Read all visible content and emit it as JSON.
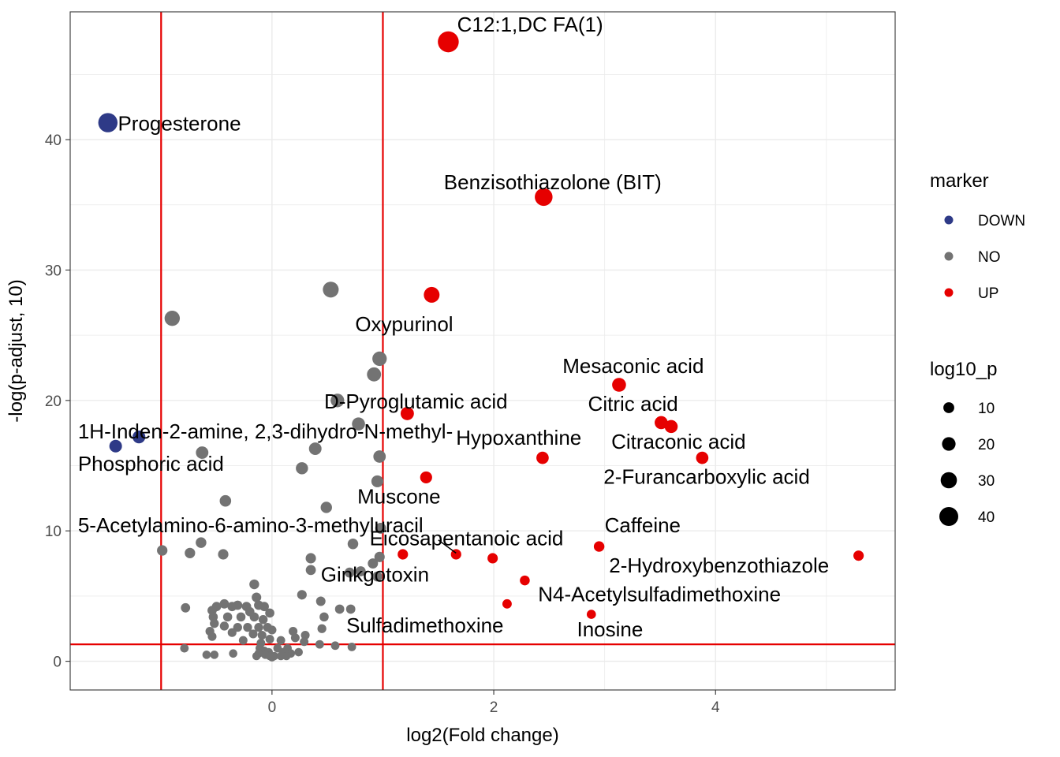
{
  "chart_data": {
    "type": "scatter",
    "xlabel": "log2(Fold change)",
    "ylabel": "-log(p-adjust, 10)",
    "xlim": [
      -1.82,
      5.62
    ],
    "ylim": [
      -2.2,
      49.8
    ],
    "x_ticks": [
      0,
      2,
      4
    ],
    "x_tick_labels": [
      "0",
      "2",
      "4"
    ],
    "y_ticks": [
      0,
      10,
      20,
      30,
      40
    ],
    "y_tick_labels": [
      "0",
      "10",
      "20",
      "30",
      "40"
    ],
    "grid": true,
    "thresholds": {
      "vlines": [
        -1,
        1
      ],
      "hline": 1.3
    },
    "colors": {
      "DOWN": "#2e3a87",
      "NO": "#737373",
      "UP": "#e60000",
      "threshold": "#e60000",
      "grid": "#ebebeb"
    },
    "legend_color": {
      "title": "marker",
      "entries": [
        "DOWN",
        "NO",
        "UP"
      ],
      "placement": "right"
    },
    "legend_size": {
      "title": "log10_p",
      "entries": [
        "10",
        "20",
        "30",
        "40"
      ],
      "values": [
        10,
        20,
        30,
        40
      ],
      "placement": "right"
    },
    "points": [
      {
        "x": 1.59,
        "y": 47.5,
        "size": 47.5,
        "marker": "UP"
      },
      {
        "x": -1.48,
        "y": 41.3,
        "size": 41.3,
        "marker": "DOWN"
      },
      {
        "x": 2.45,
        "y": 35.6,
        "size": 35.6,
        "marker": "UP"
      },
      {
        "x": 0.53,
        "y": 28.5,
        "size": 28.5,
        "marker": "NO"
      },
      {
        "x": 1.44,
        "y": 28.1,
        "size": 28.1,
        "marker": "UP"
      },
      {
        "x": -0.9,
        "y": 26.3,
        "size": 26.3,
        "marker": "NO"
      },
      {
        "x": 0.97,
        "y": 23.2,
        "size": 23.2,
        "marker": "NO"
      },
      {
        "x": 0.92,
        "y": 22.0,
        "size": 22.0,
        "marker": "NO"
      },
      {
        "x": 3.13,
        "y": 21.2,
        "size": 21.2,
        "marker": "UP"
      },
      {
        "x": 0.59,
        "y": 20.0,
        "size": 20.0,
        "marker": "NO"
      },
      {
        "x": 1.22,
        "y": 19.0,
        "size": 19.0,
        "marker": "UP"
      },
      {
        "x": 3.51,
        "y": 18.3,
        "size": 18.3,
        "marker": "UP"
      },
      {
        "x": 0.78,
        "y": 18.2,
        "size": 18.2,
        "marker": "NO"
      },
      {
        "x": 3.6,
        "y": 18.0,
        "size": 18.0,
        "marker": "UP"
      },
      {
        "x": -1.2,
        "y": 17.2,
        "size": 17.2,
        "marker": "DOWN"
      },
      {
        "x": -1.41,
        "y": 16.5,
        "size": 16.5,
        "marker": "DOWN"
      },
      {
        "x": 0.39,
        "y": 16.3,
        "size": 16.3,
        "marker": "NO"
      },
      {
        "x": -0.63,
        "y": 16.0,
        "size": 16.0,
        "marker": "NO"
      },
      {
        "x": 0.97,
        "y": 15.7,
        "size": 15.7,
        "marker": "NO"
      },
      {
        "x": 2.44,
        "y": 15.6,
        "size": 15.6,
        "marker": "UP"
      },
      {
        "x": 3.88,
        "y": 15.6,
        "size": 15.6,
        "marker": "UP"
      },
      {
        "x": 0.27,
        "y": 14.8,
        "size": 14.8,
        "marker": "NO"
      },
      {
        "x": 1.39,
        "y": 14.1,
        "size": 14.1,
        "marker": "UP"
      },
      {
        "x": 0.95,
        "y": 13.8,
        "size": 13.8,
        "marker": "NO"
      },
      {
        "x": -0.42,
        "y": 12.3,
        "size": 12.3,
        "marker": "NO"
      },
      {
        "x": 0.49,
        "y": 11.8,
        "size": 11.8,
        "marker": "NO"
      },
      {
        "x": 0.98,
        "y": 10.2,
        "size": 10.2,
        "marker": "NO"
      },
      {
        "x": -0.64,
        "y": 9.1,
        "size": 9.1,
        "marker": "NO"
      },
      {
        "x": 0.73,
        "y": 9.0,
        "size": 9.0,
        "marker": "NO"
      },
      {
        "x": 2.95,
        "y": 8.8,
        "size": 8.8,
        "marker": "UP"
      },
      {
        "x": -0.99,
        "y": 8.5,
        "size": 8.5,
        "marker": "NO"
      },
      {
        "x": -0.74,
        "y": 8.3,
        "size": 8.3,
        "marker": "NO"
      },
      {
        "x": -0.44,
        "y": 8.2,
        "size": 8.2,
        "marker": "NO"
      },
      {
        "x": 1.18,
        "y": 8.2,
        "size": 8.2,
        "marker": "UP"
      },
      {
        "x": 1.66,
        "y": 8.2,
        "size": 8.2,
        "marker": "UP"
      },
      {
        "x": 5.29,
        "y": 8.1,
        "size": 8.1,
        "marker": "UP"
      },
      {
        "x": 0.97,
        "y": 8.0,
        "size": 8.0,
        "marker": "NO"
      },
      {
        "x": 1.99,
        "y": 7.9,
        "size": 7.9,
        "marker": "UP"
      },
      {
        "x": 0.35,
        "y": 7.9,
        "size": 7.9,
        "marker": "NO"
      },
      {
        "x": 0.91,
        "y": 7.5,
        "size": 7.5,
        "marker": "NO"
      },
      {
        "x": 0.35,
        "y": 7.0,
        "size": 7.0,
        "marker": "NO"
      },
      {
        "x": 0.8,
        "y": 6.9,
        "size": 6.9,
        "marker": "NO"
      },
      {
        "x": 0.7,
        "y": 6.8,
        "size": 6.8,
        "marker": "NO"
      },
      {
        "x": 0.95,
        "y": 6.5,
        "size": 6.5,
        "marker": "NO"
      },
      {
        "x": 2.28,
        "y": 6.2,
        "size": 6.2,
        "marker": "UP"
      },
      {
        "x": -0.16,
        "y": 5.9,
        "size": 5.9,
        "marker": "NO"
      },
      {
        "x": 0.27,
        "y": 5.1,
        "size": 5.1,
        "marker": "NO"
      },
      {
        "x": -0.14,
        "y": 4.9,
        "size": 4.9,
        "marker": "NO"
      },
      {
        "x": 0.44,
        "y": 4.6,
        "size": 4.6,
        "marker": "NO"
      },
      {
        "x": 2.12,
        "y": 4.4,
        "size": 4.4,
        "marker": "UP"
      },
      {
        "x": -0.43,
        "y": 4.4,
        "size": 4.4,
        "marker": "NO"
      },
      {
        "x": -0.31,
        "y": 4.3,
        "size": 4.3,
        "marker": "NO"
      },
      {
        "x": -0.12,
        "y": 4.3,
        "size": 4.3,
        "marker": "NO"
      },
      {
        "x": -0.5,
        "y": 4.2,
        "size": 4.2,
        "marker": "NO"
      },
      {
        "x": -0.36,
        "y": 4.2,
        "size": 4.2,
        "marker": "NO"
      },
      {
        "x": -0.23,
        "y": 4.2,
        "size": 4.2,
        "marker": "NO"
      },
      {
        "x": -0.07,
        "y": 4.2,
        "size": 4.2,
        "marker": "NO"
      },
      {
        "x": -0.78,
        "y": 4.1,
        "size": 4.1,
        "marker": "NO"
      },
      {
        "x": 0.61,
        "y": 4.0,
        "size": 4.0,
        "marker": "NO"
      },
      {
        "x": 0.71,
        "y": 4.0,
        "size": 4.0,
        "marker": "NO"
      },
      {
        "x": -0.54,
        "y": 3.9,
        "size": 3.9,
        "marker": "NO"
      },
      {
        "x": -0.2,
        "y": 3.8,
        "size": 3.8,
        "marker": "NO"
      },
      {
        "x": -0.02,
        "y": 3.7,
        "size": 3.7,
        "marker": "NO"
      },
      {
        "x": 2.88,
        "y": 3.6,
        "size": 3.6,
        "marker": "UP"
      },
      {
        "x": -0.53,
        "y": 3.4,
        "size": 3.4,
        "marker": "NO"
      },
      {
        "x": -0.4,
        "y": 3.4,
        "size": 3.4,
        "marker": "NO"
      },
      {
        "x": -0.28,
        "y": 3.4,
        "size": 3.4,
        "marker": "NO"
      },
      {
        "x": -0.16,
        "y": 3.4,
        "size": 3.4,
        "marker": "NO"
      },
      {
        "x": 0.47,
        "y": 3.4,
        "size": 3.4,
        "marker": "NO"
      },
      {
        "x": -0.08,
        "y": 3.2,
        "size": 3.2,
        "marker": "NO"
      },
      {
        "x": -0.52,
        "y": 2.9,
        "size": 2.9,
        "marker": "NO"
      },
      {
        "x": -0.43,
        "y": 2.7,
        "size": 2.7,
        "marker": "NO"
      },
      {
        "x": -0.31,
        "y": 2.6,
        "size": 2.6,
        "marker": "NO"
      },
      {
        "x": -0.22,
        "y": 2.6,
        "size": 2.6,
        "marker": "NO"
      },
      {
        "x": -0.12,
        "y": 2.6,
        "size": 2.6,
        "marker": "NO"
      },
      {
        "x": -0.04,
        "y": 2.6,
        "size": 2.6,
        "marker": "NO"
      },
      {
        "x": 0.45,
        "y": 2.5,
        "size": 2.5,
        "marker": "NO"
      },
      {
        "x": 0.0,
        "y": 2.4,
        "size": 2.4,
        "marker": "NO"
      },
      {
        "x": -0.56,
        "y": 2.3,
        "size": 2.3,
        "marker": "NO"
      },
      {
        "x": 0.19,
        "y": 2.3,
        "size": 2.3,
        "marker": "NO"
      },
      {
        "x": -0.36,
        "y": 2.2,
        "size": 2.2,
        "marker": "NO"
      },
      {
        "x": -0.17,
        "y": 2.1,
        "size": 2.1,
        "marker": "NO"
      },
      {
        "x": -0.09,
        "y": 2.0,
        "size": 2.0,
        "marker": "NO"
      },
      {
        "x": 0.3,
        "y": 2.0,
        "size": 2.0,
        "marker": "NO"
      },
      {
        "x": -0.54,
        "y": 1.9,
        "size": 1.9,
        "marker": "NO"
      },
      {
        "x": 0.21,
        "y": 1.8,
        "size": 1.8,
        "marker": "NO"
      },
      {
        "x": -0.02,
        "y": 1.7,
        "size": 1.7,
        "marker": "NO"
      },
      {
        "x": -0.26,
        "y": 1.6,
        "size": 1.6,
        "marker": "NO"
      },
      {
        "x": 0.08,
        "y": 1.6,
        "size": 1.6,
        "marker": "NO"
      },
      {
        "x": 0.29,
        "y": 1.5,
        "size": 1.5,
        "marker": "NO"
      },
      {
        "x": -0.1,
        "y": 1.4,
        "size": 1.4,
        "marker": "NO"
      },
      {
        "x": 0.43,
        "y": 1.3,
        "size": 1.3,
        "marker": "NO"
      },
      {
        "x": 0.57,
        "y": 1.2,
        "size": 1.2,
        "marker": "NO"
      },
      {
        "x": 0.72,
        "y": 1.1,
        "size": 1.1,
        "marker": "NO"
      },
      {
        "x": -0.11,
        "y": 1.0,
        "size": 1.0,
        "marker": "NO"
      },
      {
        "x": 0.05,
        "y": 1.0,
        "size": 1.0,
        "marker": "NO"
      },
      {
        "x": 0.14,
        "y": 1.0,
        "size": 1.0,
        "marker": "NO"
      },
      {
        "x": -0.79,
        "y": 1.0,
        "size": 1.0,
        "marker": "NO"
      },
      {
        "x": -0.07,
        "y": 0.8,
        "size": 0.8,
        "marker": "NO"
      },
      {
        "x": -0.03,
        "y": 0.7,
        "size": 0.7,
        "marker": "NO"
      },
      {
        "x": 0.1,
        "y": 0.7,
        "size": 0.7,
        "marker": "NO"
      },
      {
        "x": 0.24,
        "y": 0.7,
        "size": 0.7,
        "marker": "NO"
      },
      {
        "x": -0.35,
        "y": 0.6,
        "size": 0.6,
        "marker": "NO"
      },
      {
        "x": -0.12,
        "y": 0.6,
        "size": 0.6,
        "marker": "NO"
      },
      {
        "x": 0.17,
        "y": 0.6,
        "size": 0.6,
        "marker": "NO"
      },
      {
        "x": -0.59,
        "y": 0.5,
        "size": 0.5,
        "marker": "NO"
      },
      {
        "x": -0.52,
        "y": 0.5,
        "size": 0.5,
        "marker": "NO"
      },
      {
        "x": -0.06,
        "y": 0.5,
        "size": 0.5,
        "marker": "NO"
      },
      {
        "x": 0.02,
        "y": 0.4,
        "size": 0.4,
        "marker": "NO"
      },
      {
        "x": -0.02,
        "y": 0.4,
        "size": 0.4,
        "marker": "NO"
      },
      {
        "x": 0.08,
        "y": 0.4,
        "size": 0.4,
        "marker": "NO"
      },
      {
        "x": 0.13,
        "y": 0.4,
        "size": 0.4,
        "marker": "NO"
      },
      {
        "x": -0.14,
        "y": 0.4,
        "size": 0.4,
        "marker": "NO"
      },
      {
        "x": 0.0,
        "y": 0.3,
        "size": 0.3,
        "marker": "NO"
      }
    ],
    "labels": [
      {
        "text": "C12:1,DC FA(1)",
        "x": 1.67,
        "y": 48.3,
        "anchor": "start"
      },
      {
        "text": "Progesterone",
        "x": -1.39,
        "y": 40.7,
        "anchor": "start"
      },
      {
        "text": "Benzisothiazolone (BIT)",
        "x": 1.55,
        "y": 36.2,
        "anchor": "start"
      },
      {
        "text": "Oxypurinol",
        "x": 0.75,
        "y": 25.3,
        "anchor": "start"
      },
      {
        "text": "Mesaconic acid",
        "x": 2.62,
        "y": 22.1,
        "anchor": "start"
      },
      {
        "text": "D-Pyroglutamic acid",
        "x": 0.47,
        "y": 19.4,
        "anchor": "start"
      },
      {
        "text": "Citric acid",
        "x": 2.85,
        "y": 19.2,
        "anchor": "start"
      },
      {
        "text": "1H-Inden-2-amine, 2,3-dihydro-N-methyl-",
        "x": -1.75,
        "y": 17.1,
        "anchor": "start"
      },
      {
        "text": "Hypoxanthine",
        "x": 1.66,
        "y": 16.6,
        "anchor": "start"
      },
      {
        "text": "Citraconic acid",
        "x": 3.06,
        "y": 16.3,
        "anchor": "start"
      },
      {
        "text": "Phosphoric acid",
        "x": -1.75,
        "y": 14.6,
        "anchor": "start"
      },
      {
        "text": "2-Furancarboxylic acid",
        "x": 2.99,
        "y": 13.6,
        "anchor": "start"
      },
      {
        "text": "Muscone",
        "x": 0.77,
        "y": 12.1,
        "anchor": "start"
      },
      {
        "text": "5-Acetylamino-6-amino-3-methyluracil",
        "x": -1.75,
        "y": 9.9,
        "anchor": "start"
      },
      {
        "text": "Caffeine",
        "x": 3.0,
        "y": 9.9,
        "anchor": "start"
      },
      {
        "text": "Eicosapentanoic acid",
        "x": 0.88,
        "y": 8.9,
        "anchor": "start"
      },
      {
        "text": "2-Hydroxybenzothiazole",
        "x": 3.04,
        "y": 6.8,
        "anchor": "start"
      },
      {
        "text": "Ginkgotoxin",
        "x": 0.44,
        "y": 6.1,
        "anchor": "start"
      },
      {
        "text": "N4-Acetylsulfadimethoxine",
        "x": 2.4,
        "y": 4.6,
        "anchor": "start"
      },
      {
        "text": "Sulfadimethoxine",
        "x": 0.67,
        "y": 2.2,
        "anchor": "start"
      },
      {
        "text": "Inosine",
        "x": 2.75,
        "y": 1.9,
        "anchor": "start"
      }
    ],
    "connectors": [
      {
        "x1": 1.5,
        "y1": 9.3,
        "x2": 1.66,
        "y2": 8.3
      }
    ]
  }
}
